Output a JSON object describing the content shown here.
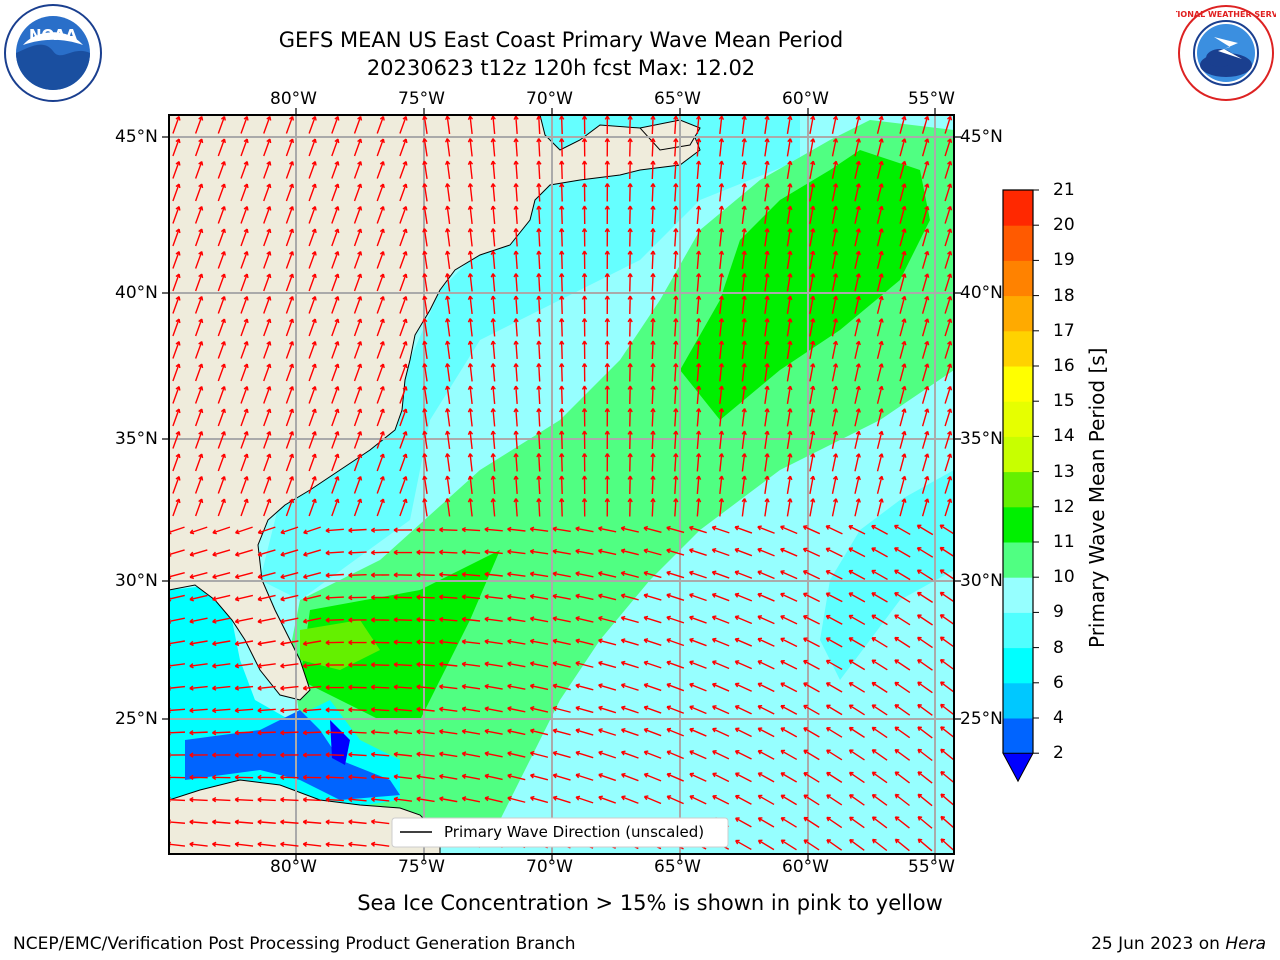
{
  "header": {
    "title_line1": "GEFS MEAN US East Coast Primary Wave Mean Period",
    "title_line2": "20230623 t12z 120h fcst   Max: 12.02"
  },
  "logos": {
    "noara_text": "NOAA",
    "nws_text": "NATIONAL WEATHER SERVICE"
  },
  "map": {
    "lon_top": [
      "80°W",
      "75°W",
      "70°W",
      "65°W",
      "60°W",
      "55°W"
    ],
    "lon_bottom": [
      "80°W",
      "75°W",
      "70°W",
      "65°W",
      "60°W",
      "55°W"
    ],
    "lat_left": [
      "45°N",
      "40°N",
      "35°N",
      "30°N",
      "25°N"
    ],
    "lat_right": [
      "45°N",
      "40°N",
      "35°N",
      "30°N",
      "25°N"
    ],
    "legend_label": "Primary Wave Direction (unscaled)",
    "land_color": "#efecdc",
    "grid_color": "#aaaaaa",
    "arrow_color": "#ff0000"
  },
  "colorbar": {
    "label": "Primary Wave Mean Period [s]",
    "ticks": [
      "2",
      "4",
      "6",
      "8",
      "9",
      "10",
      "11",
      "12",
      "13",
      "14",
      "15",
      "16",
      "17",
      "18",
      "19",
      "20",
      "21"
    ],
    "colors": [
      "#0064ff",
      "#00c8ff",
      "#00ffff",
      "#50ffff",
      "#96ffff",
      "#50ff82",
      "#00f000",
      "#64f000",
      "#c8ff00",
      "#e6ff00",
      "#ffff00",
      "#ffd200",
      "#ffaa00",
      "#ff8200",
      "#ff5a00",
      "#ff2800"
    ],
    "under_color": "#0000ff"
  },
  "notes": {
    "sea_ice": "Sea Ice Concentration > 15% is shown in pink to yellow",
    "footer_left": "NCEP/EMC/Verification Post Processing Product Generation Branch",
    "footer_right_date": "25 Jun 2023 on ",
    "footer_right_host": "Hera"
  }
}
